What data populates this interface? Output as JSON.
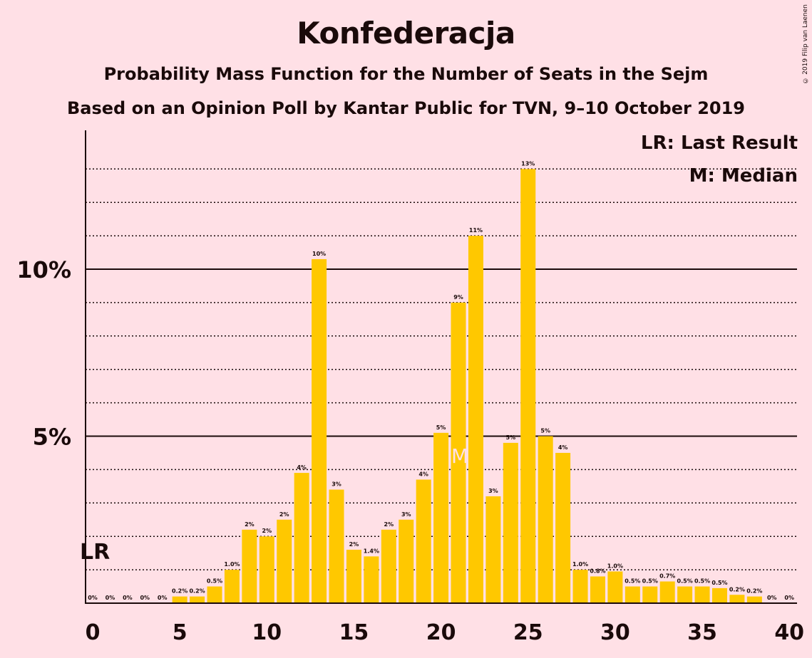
{
  "chart_data": {
    "type": "bar",
    "title": "Konfederacja",
    "subtitle": "Probability Mass Function for the Number of Seats in the Sejm",
    "subtitle2": "Based on an Opinion Poll by Kantar Public for TVN, 9–10 October 2019",
    "copyright": "© 2019 Filip van Laenen",
    "legend": {
      "lr": "LR: Last Result",
      "median": "M: Median",
      "placement": "top-right"
    },
    "x": [
      0,
      1,
      2,
      3,
      4,
      5,
      6,
      7,
      8,
      9,
      10,
      11,
      12,
      13,
      14,
      15,
      16,
      17,
      18,
      19,
      20,
      21,
      22,
      23,
      24,
      25,
      26,
      27,
      28,
      29,
      30,
      31,
      32,
      33,
      34,
      35,
      36,
      37,
      38,
      39,
      40
    ],
    "values": [
      0,
      0,
      0,
      0,
      0,
      0.2,
      0.2,
      0.5,
      1.0,
      2.2,
      2.0,
      2.5,
      3.9,
      10.3,
      3.4,
      1.6,
      1.4,
      2.2,
      2.5,
      3.7,
      5.1,
      9.0,
      11.0,
      3.2,
      4.8,
      13.0,
      5.0,
      4.5,
      1.0,
      0.8,
      0.95,
      0.5,
      0.5,
      0.65,
      0.5,
      0.5,
      0.45,
      0.25,
      0.2,
      0,
      0
    ],
    "data_labels": [
      "0%",
      "0%",
      "0%",
      "0%",
      "0%",
      "0.2%",
      "0.2%",
      "0.5%",
      "1.0%",
      "2%",
      "2%",
      "2%",
      "4%",
      "10%",
      "3%",
      "2%",
      "1.4%",
      "2%",
      "3%",
      "4%",
      "5%",
      "9%",
      "11%",
      "3%",
      "5%",
      "13%",
      "5%",
      "4%",
      "1.0%",
      "0.8%",
      "1.0%",
      "0.5%",
      "0.5%",
      "0.7%",
      "0.5%",
      "0.5%",
      "0.5%",
      "0.2%",
      "0.2%",
      "0%",
      "0%"
    ],
    "x_ticks": [
      "0",
      "5",
      "10",
      "15",
      "20",
      "25",
      "30",
      "35",
      "40"
    ],
    "y_ticks": [
      "5%",
      "10%"
    ],
    "ylim": [
      0,
      14
    ],
    "last_result_seat": 0,
    "last_result_label": "LR",
    "median_seat": 21,
    "median_label": "M",
    "bar_color": "#FFC800",
    "background": "#FFE0E6"
  }
}
